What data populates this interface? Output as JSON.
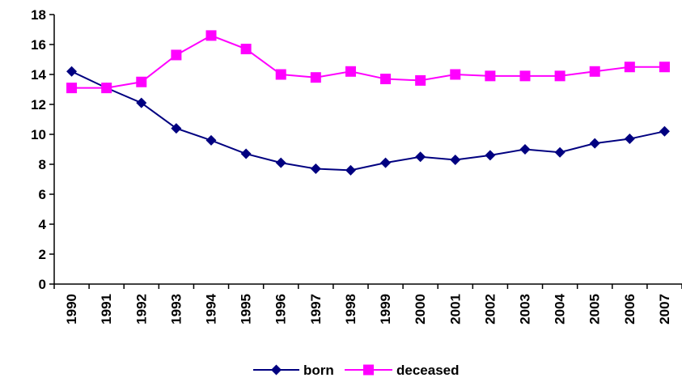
{
  "chart_data": {
    "type": "line",
    "x": [
      "1990",
      "1991",
      "1992",
      "1993",
      "1994",
      "1995",
      "1996",
      "1997",
      "1998",
      "1999",
      "2000",
      "2001",
      "2002",
      "2003",
      "2004",
      "2005",
      "2006",
      "2007"
    ],
    "series": [
      {
        "name": "born",
        "color": "#000080",
        "marker": "diamond",
        "values": [
          14.2,
          13.1,
          12.1,
          10.4,
          9.6,
          8.7,
          8.1,
          7.7,
          7.6,
          8.1,
          8.5,
          8.3,
          8.6,
          9.0,
          8.8,
          9.4,
          9.7,
          10.2
        ]
      },
      {
        "name": "deceased",
        "color": "#FF00FF",
        "marker": "square",
        "values": [
          13.1,
          13.1,
          13.5,
          15.3,
          16.6,
          15.7,
          14.0,
          13.8,
          14.2,
          13.7,
          13.6,
          14.0,
          13.9,
          13.9,
          13.9,
          14.2,
          14.5,
          14.5
        ]
      }
    ],
    "ylim": [
      0,
      18
    ],
    "yticks": [
      0,
      2,
      4,
      6,
      8,
      10,
      12,
      14,
      16,
      18
    ],
    "grid": false,
    "legend": "bottom",
    "title": "",
    "xlabel": "",
    "ylabel": ""
  }
}
